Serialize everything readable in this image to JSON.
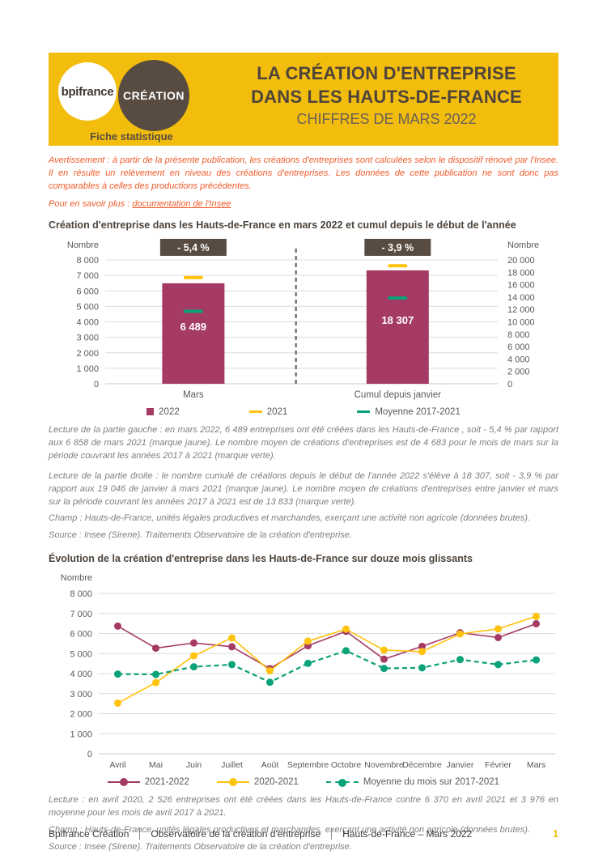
{
  "header": {
    "logo_bpifrance": "bpifrance",
    "logo_creation": "CRÉATION",
    "tagline": "Fiche statistique",
    "title_line1": "LA CRÉATION D'ENTREPRISE",
    "title_line2": "DANS LES HAUTS-DE-FRANCE",
    "subtitle": "CHIFFRES DE MARS 2022"
  },
  "notice": {
    "avertissement": "Avertissement : à partir de la présente publication, les créations d'entreprises sont calculées selon le dispositif rénové par l'Insee. Il en résulte un relèvement en niveau des créations d'entreprises. Les données de cette publication ne sont donc pas comparables à celles des productions précédentes.",
    "more_info_label": "Pour en savoir plus : ",
    "more_info_link": "documentation de l'Insee"
  },
  "section1": {
    "title": "Création d'entreprise dans les Hauts-de-France  en mars 2022 et cumul depuis le début de l'année",
    "lecture_gauche": "Lecture de la partie gauche : en mars 2022, 6 489 entreprises ont été créées dans les Hauts-de-France , soit - 5,4 % par rapport aux 6 858 de mars 2021 (marque jaune). Le nombre moyen de créations d'entreprises est de 4 683 pour le mois de mars sur la période couvrant les années 2017 à 2021 (marque verte).",
    "lecture_droite": "Lecture de la partie droite : le nombre cumulé de créations depuis le début de l'année 2022 s'élève à 18 307, soit - 3,9 % par rapport aux 19 046 de janvier à mars 2021 (marque jaune). Le nombre moyen de créations d'entreprises entre janvier et mars sur la période couvrant les années 2017 à 2021 est de 13 833 (marque verte).",
    "champ": "Champ : Hauts-de-France, unités légales productives et marchandes, exerçant une activité non agricole (données brutes).",
    "source": "Source : Insee (Sirene). Traitements Observatoire de la création d'entreprise."
  },
  "section2": {
    "title": "Évolution de la création d'entreprise dans les Hauts-de-France  sur douze mois glissants",
    "lecture": "Lecture : en avril 2020, 2 526 entreprises ont été créées dans les Hauts-de-France  contre 6 370 en avril 2021 et 3 976 en moyenne pour les mois de avril 2017 à 2021.",
    "champ": "Champ : Hauts-de-France, unités légales productives et marchandes, exerçant une activité non agricole (données brutes).",
    "source": "Source : Insee (Sirene). Traitements Observatoire de la création d'entreprise."
  },
  "footer": {
    "brand": "Bpifrance Création",
    "observatory": "Observatoire de la création d'entreprise",
    "edition": "Hauts-de-France – Mars 2022",
    "page": "1"
  },
  "colors": {
    "banner_yellow": "#F3BD0D",
    "brand_brown": "#574B42",
    "bar_magenta": "#A53A64",
    "marker_yellow": "#FFC20E",
    "marker_green": "#0AA278",
    "notice_orange": "#EF5B2B",
    "lecture_gray": "#7F7F7F",
    "axis_gray": "#595959"
  },
  "chart_data": [
    {
      "type": "bar",
      "title": "Création d'entreprise dans les Hauts-de-France  en mars 2022 et cumul depuis le début de l'année",
      "axes": {
        "left": {
          "label": "Nombre",
          "min": 0,
          "max": 8000,
          "step": 1000
        },
        "right": {
          "label": "Nombre",
          "min": 0,
          "max": 20000,
          "step": 2000
        }
      },
      "groups": [
        {
          "category": "Mars",
          "axis": "left",
          "value_2022": 6489,
          "marker_2021": 6858,
          "marker_moyenne": 4683,
          "badge": "- 5,4 %"
        },
        {
          "category": "Cumul depuis janvier",
          "axis": "right",
          "value_2022": 18307,
          "marker_2021": 19046,
          "marker_moyenne": 13833,
          "badge": "- 3,9 %"
        }
      ],
      "legend": [
        "2022",
        "2021",
        "Moyenne 2017-2021"
      ],
      "grid": true
    },
    {
      "type": "line",
      "title": "Évolution de la création d'entreprise dans les Hauts-de-France  sur douze mois glissants",
      "ylabel": "Nombre",
      "ylim": [
        0,
        8000
      ],
      "ystep": 1000,
      "grid": true,
      "legend_position": "bottom",
      "categories": [
        "Avril",
        "Mai",
        "Juin",
        "Juillet",
        "Août",
        "Septembre",
        "Octobre",
        "Novembre",
        "Décembre",
        "Janvier",
        "Février",
        "Mars"
      ],
      "series": [
        {
          "name": "2021-2022",
          "color": "#A53A64",
          "style": "solid",
          "values": [
            6370,
            5270,
            5530,
            5340,
            4250,
            5390,
            6110,
            4720,
            5360,
            6040,
            5800,
            6489
          ]
        },
        {
          "name": "2020-2021",
          "color": "#FFC20E",
          "style": "solid",
          "values": [
            2526,
            3550,
            4890,
            5780,
            4140,
            5620,
            6220,
            5170,
            5100,
            5980,
            6230,
            6858
          ]
        },
        {
          "name": "Moyenne du mois sur 2017-2021",
          "color": "#0AA278",
          "style": "dashed",
          "values": [
            3976,
            3960,
            4340,
            4450,
            3570,
            4510,
            5140,
            4260,
            4290,
            4700,
            4450,
            4683
          ]
        }
      ]
    }
  ]
}
